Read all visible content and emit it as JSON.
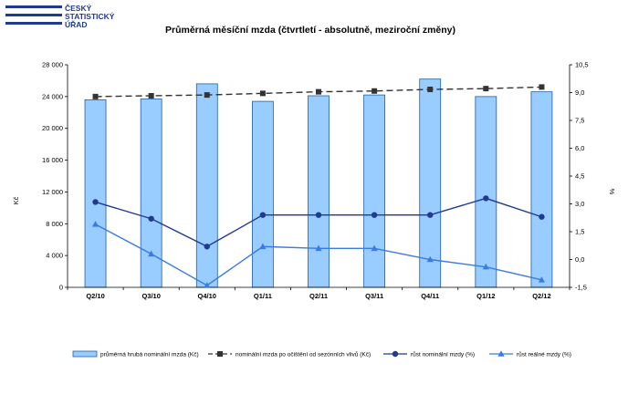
{
  "logo": {
    "lines": [
      "ČESKÝ",
      "STATISTICKÝ",
      "ÚŘAD"
    ],
    "color": "#1f3a93"
  },
  "chart_data": {
    "type": "bar",
    "title": "Průměrná měsíční mzda (čtvrtletí - absolutně, meziroční změny)",
    "categories": [
      "Q2/10",
      "Q3/10",
      "Q4/10",
      "Q1/11",
      "Q2/11",
      "Q3/11",
      "Q4/11",
      "Q1/12",
      "Q2/12"
    ],
    "ylabel_left": "Kč",
    "ylabel_right": "%",
    "ylim_left": [
      0,
      28000
    ],
    "yticks_left": [
      0,
      4000,
      8000,
      12000,
      16000,
      20000,
      24000,
      28000
    ],
    "yticklabels_left": [
      "0",
      "4 000",
      "8 000",
      "12 000",
      "16 000",
      "20 000",
      "24 000",
      "28 000"
    ],
    "ylim_right": [
      -1.5,
      10.5
    ],
    "yticks_right": [
      -1.5,
      0,
      1.5,
      3,
      4.5,
      6,
      7.5,
      9,
      10.5
    ],
    "yticklabels_right": [
      "-1,5",
      "0,0",
      "1,5",
      "3,0",
      "4,5",
      "6,0",
      "7,5",
      "9,0",
      "10,5"
    ],
    "grid": false,
    "legend_position": "bottom",
    "series": [
      {
        "name": "průměrná hrubá nominální mzda (Kč)",
        "kind": "bar",
        "axis": "left",
        "color": "#99ccff",
        "edge": "#1f5fa8",
        "values": [
          23600,
          23700,
          25600,
          23400,
          24100,
          24200,
          26200,
          24000,
          24600
        ]
      },
      {
        "name": "nominální mzda po očištění od sezónních vlivů (Kč)",
        "kind": "line",
        "axis": "left",
        "color": "#333333",
        "dash": true,
        "marker": "square",
        "values": [
          24000,
          24100,
          24200,
          24400,
          24600,
          24700,
          24900,
          25000,
          25200
        ]
      },
      {
        "name": "růst nominální mzdy (%)",
        "kind": "line",
        "axis": "right",
        "color": "#1f3a93",
        "marker": "circle",
        "values": [
          3.1,
          2.2,
          0.7,
          2.4,
          2.4,
          2.4,
          2.4,
          3.3,
          2.3
        ]
      },
      {
        "name": "růst reálné mzdy (%)",
        "kind": "line",
        "axis": "right",
        "color": "#3a7be0",
        "marker": "triangle",
        "values": [
          1.9,
          0.3,
          -1.4,
          0.7,
          0.6,
          0.6,
          0.0,
          -0.4,
          -1.1
        ]
      }
    ]
  }
}
